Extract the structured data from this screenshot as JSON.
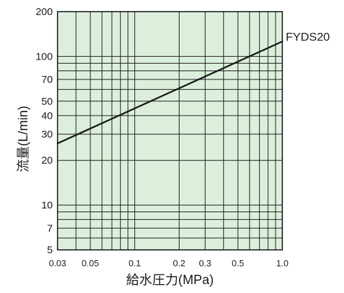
{
  "chart_data": {
    "type": "line",
    "title": "",
    "xlabel": "給水圧力(MPa)",
    "ylabel": "流量(L/min)",
    "xscale": "log",
    "yscale": "log",
    "xlim": [
      0.03,
      1.0
    ],
    "ylim": [
      5,
      200
    ],
    "grid": true,
    "colors": {
      "plot_background": "#dcefdc",
      "grid": "#1a1a1a",
      "line": "#1a1a1a"
    },
    "x_ticks": [
      {
        "value": 0.03,
        "label": "0.03"
      },
      {
        "value": 0.05,
        "label": "0.05"
      },
      {
        "value": 0.1,
        "label": "0.1"
      },
      {
        "value": 0.2,
        "label": "0.2"
      },
      {
        "value": 0.3,
        "label": "0.3"
      },
      {
        "value": 0.5,
        "label": "0.5"
      },
      {
        "value": 1.0,
        "label": "1.0"
      }
    ],
    "y_ticks": [
      {
        "value": 5,
        "label": "5"
      },
      {
        "value": 7,
        "label": "7"
      },
      {
        "value": 10,
        "label": "10"
      },
      {
        "value": 20,
        "label": "20"
      },
      {
        "value": 30,
        "label": "30"
      },
      {
        "value": 40,
        "label": "40"
      },
      {
        "value": 50,
        "label": "50"
      },
      {
        "value": 70,
        "label": "70"
      },
      {
        "value": 100,
        "label": "100"
      },
      {
        "value": 200,
        "label": "200"
      }
    ],
    "x_gridlines": [
      0.04,
      0.05,
      0.06,
      0.07,
      0.08,
      0.09,
      0.1,
      0.2,
      0.3,
      0.4,
      0.5,
      0.6,
      0.7,
      0.8,
      0.9
    ],
    "y_gridlines": [
      6,
      7,
      8,
      9,
      10,
      20,
      30,
      40,
      50,
      60,
      70,
      80,
      90,
      100
    ],
    "series": [
      {
        "name": "FYDS20",
        "x": [
          0.03,
          1.0
        ],
        "y": [
          26,
          126
        ]
      }
    ]
  }
}
